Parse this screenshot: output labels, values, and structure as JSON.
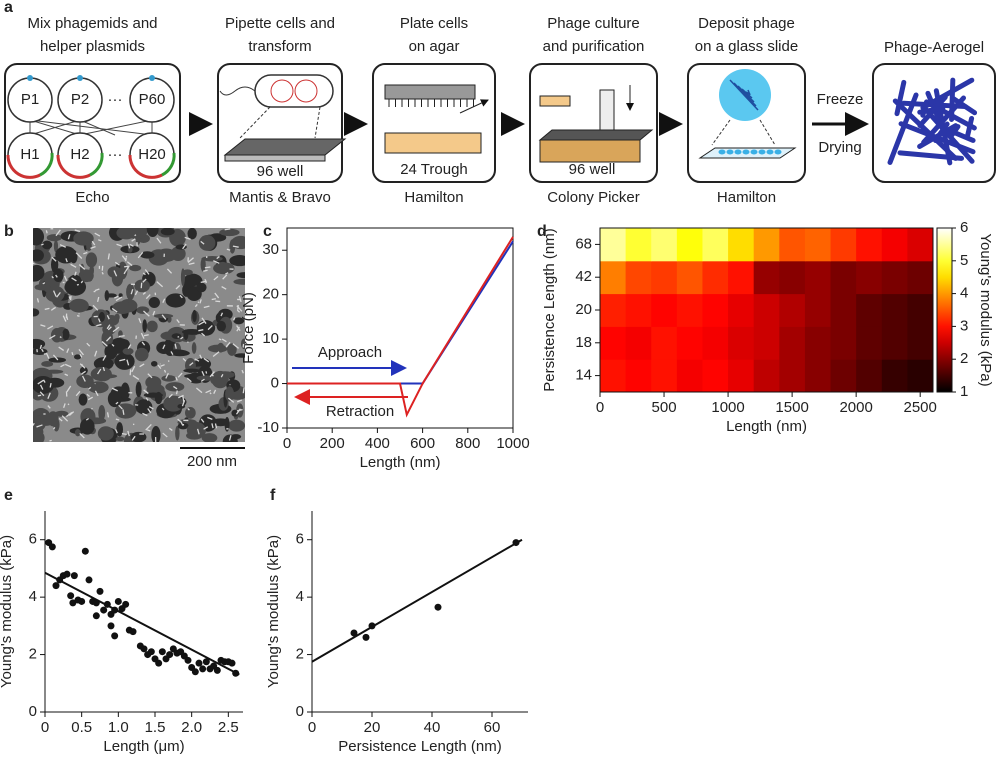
{
  "panel_labels": [
    "a",
    "b",
    "c",
    "d",
    "e",
    "f"
  ],
  "workflow": {
    "steps": [
      {
        "title": [
          "Mix phagemids and",
          "helper plasmids"
        ],
        "nodes": [
          "P1",
          "P2",
          "···",
          "P60",
          "H1",
          "H2",
          "···",
          "H20"
        ],
        "caption": "Echo"
      },
      {
        "title": [
          "Pipette cells and",
          "transform"
        ],
        "inner": "96 well",
        "caption": "Mantis & Bravo"
      },
      {
        "title": [
          "Plate cells",
          "on agar"
        ],
        "inner": "24 Trough",
        "caption": "Hamilton"
      },
      {
        "title": [
          "Phage culture",
          "and purification"
        ],
        "inner": "96 well",
        "caption": "Colony Picker"
      },
      {
        "title": [
          "Deposit phage",
          "on a glass slide"
        ],
        "caption": "Hamilton"
      },
      {
        "title": [
          "Phage-Aerogel"
        ]
      }
    ],
    "arrow_label": [
      "Freeze",
      "Drying"
    ]
  },
  "scale_bar": "200 nm",
  "chart_data": [
    {
      "type": "line",
      "xlabel": "Length (nm)",
      "ylabel": "Force (pN)",
      "xlim": [
        0,
        1000
      ],
      "ylim": [
        -10,
        35
      ],
      "xticks": [
        0,
        200,
        400,
        600,
        800,
        1000
      ],
      "yticks": [
        -10,
        0,
        10,
        20,
        30
      ],
      "series": [
        {
          "name": "Approach",
          "color": "#2233bb",
          "x": [
            0,
            600,
            1000
          ],
          "values": [
            0,
            0,
            32
          ]
        },
        {
          "name": "Retraction",
          "color": "#dd2222",
          "x": [
            0,
            500,
            530,
            600,
            1000
          ],
          "values": [
            0,
            0,
            -7,
            0,
            33
          ]
        }
      ]
    },
    {
      "type": "heatmap",
      "xlabel": "Length (nm)",
      "ylabel": "Persistence Length (nm)",
      "xlim": [
        0,
        2600
      ],
      "xticks": [
        0,
        500,
        1000,
        1500,
        2000,
        2500
      ],
      "bins": [
        0,
        200,
        400,
        600,
        800,
        1000,
        1200,
        1400,
        1600,
        1800,
        2000,
        2200,
        2400,
        2600
      ],
      "categories": [
        "14",
        "18",
        "20",
        "42",
        "68"
      ],
      "values": [
        [
          3.0,
          2.9,
          3.0,
          2.8,
          2.9,
          2.7,
          2.4,
          2.2,
          2.0,
          1.8,
          1.6,
          1.4,
          1.3
        ],
        [
          2.9,
          2.8,
          3.0,
          2.9,
          2.8,
          2.6,
          2.5,
          2.2,
          2.0,
          1.9,
          1.7,
          1.6,
          1.5
        ],
        [
          3.1,
          3.0,
          2.9,
          3.0,
          2.9,
          2.7,
          2.5,
          2.3,
          2.1,
          1.9,
          1.7,
          1.6,
          1.5
        ],
        [
          3.8,
          3.4,
          3.3,
          3.5,
          3.2,
          3.0,
          2.1,
          2.0,
          2.1,
          1.9,
          2.0,
          1.9,
          1.8
        ],
        [
          5.5,
          5.0,
          5.3,
          4.8,
          5.2,
          4.5,
          4.0,
          3.5,
          3.6,
          3.3,
          3.0,
          2.8,
          2.6
        ]
      ],
      "colorbar_label": "Young's modulus (kPa)",
      "clim": [
        1,
        6
      ],
      "cticks": [
        1,
        2,
        3,
        4,
        5,
        6
      ],
      "colormap": "hot"
    },
    {
      "type": "scatter",
      "xlabel": "Length (μm)",
      "ylabel": "Young's modulus (kPa)",
      "xlim": [
        0,
        2.7
      ],
      "ylim": [
        0,
        7
      ],
      "xticks": [
        0,
        0.5,
        {
          "value": 1,
          "label": "1.0"
        },
        1.5,
        {
          "value": 2,
          "label": "2.0"
        },
        2.5
      ],
      "yticks": [
        0,
        2,
        4,
        6
      ],
      "series": [
        {
          "color": "#111111",
          "x": [
            0.05,
            0.1,
            0.15,
            0.2,
            0.25,
            0.3,
            0.35,
            0.38,
            0.4,
            0.45,
            0.5,
            0.55,
            0.6,
            0.65,
            0.7,
            0.7,
            0.75,
            0.8,
            0.85,
            0.9,
            0.9,
            0.95,
            0.95,
            1.0,
            1.05,
            1.1,
            1.15,
            1.2,
            1.3,
            1.35,
            1.4,
            1.45,
            1.5,
            1.55,
            1.6,
            1.65,
            1.7,
            1.75,
            1.8,
            1.85,
            1.9,
            1.95,
            2.0,
            2.05,
            2.1,
            2.15,
            2.2,
            2.25,
            2.3,
            2.35,
            2.4,
            2.45,
            2.5,
            2.55,
            2.6
          ],
          "values": [
            5.9,
            5.75,
            4.4,
            4.6,
            4.75,
            4.8,
            4.05,
            3.8,
            4.75,
            3.9,
            3.85,
            5.6,
            4.6,
            3.85,
            3.35,
            3.8,
            4.2,
            3.55,
            3.75,
            3.4,
            3.0,
            3.55,
            2.65,
            3.85,
            3.6,
            3.75,
            2.85,
            2.8,
            2.3,
            2.2,
            2.0,
            2.1,
            1.85,
            1.7,
            2.1,
            1.85,
            2.0,
            2.2,
            2.05,
            2.1,
            1.95,
            1.8,
            1.55,
            1.4,
            1.7,
            1.5,
            1.75,
            1.5,
            1.6,
            1.45,
            1.8,
            1.75,
            1.75,
            1.7,
            1.35
          ]
        },
        {
          "type": "fit",
          "color": "#111111",
          "x": [
            0,
            2.65
          ],
          "values": [
            4.85,
            1.3
          ]
        }
      ]
    },
    {
      "type": "scatter",
      "xlabel": "Persistence Length (nm)",
      "ylabel": "Young's modulus (kPa)",
      "xlim": [
        0,
        72
      ],
      "ylim": [
        0,
        7
      ],
      "xticks": [
        0,
        20,
        40,
        60
      ],
      "yticks": [
        0,
        2,
        4,
        6
      ],
      "series": [
        {
          "color": "#111111",
          "x": [
            14,
            18,
            20,
            42,
            68
          ],
          "values": [
            2.75,
            2.6,
            3.0,
            3.65,
            5.9
          ]
        },
        {
          "type": "fit",
          "color": "#111111",
          "x": [
            0,
            70
          ],
          "values": [
            1.75,
            6.0
          ]
        }
      ]
    }
  ]
}
